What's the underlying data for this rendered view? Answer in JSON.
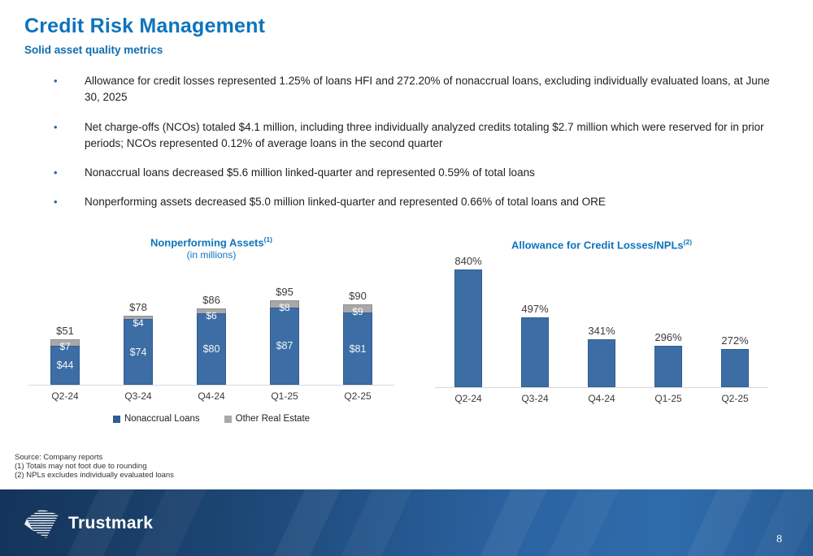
{
  "header": {
    "title": "Credit Risk Management",
    "subtitle": "Solid asset quality metrics"
  },
  "bullets": [
    "Allowance for credit losses represented 1.25% of loans HFI and 272.20% of nonaccrual loans, excluding individually evaluated loans, at June 30, 2025",
    "Net charge-offs (NCOs) totaled $4.1 million, including three individually analyzed credits totaling $2.7 million which were reserved for in prior periods; NCOs represented 0.12% of average loans in the second quarter",
    "Nonaccrual loans decreased $5.6 million linked-quarter and represented 0.59% of total loans",
    "Nonperforming assets decreased $5.0 million linked-quarter and represented 0.66% of total loans and ORE"
  ],
  "chart_data": [
    {
      "type": "bar",
      "stacked": true,
      "title": "Nonperforming Assets",
      "title_sup": "(1)",
      "subtitle": "(in millions)",
      "categories": [
        "Q2-24",
        "Q3-24",
        "Q4-24",
        "Q1-25",
        "Q2-25"
      ],
      "series": [
        {
          "name": "Nonaccrual Loans",
          "color": "#3c6ea5",
          "values": [
            44,
            74,
            80,
            87,
            81
          ],
          "labels": [
            "$44",
            "$74",
            "$80",
            "$87",
            "$81"
          ]
        },
        {
          "name": "Other Real Estate",
          "color": "#a8a8a8",
          "values": [
            7,
            4,
            6,
            8,
            9
          ],
          "labels": [
            "$7",
            "$4",
            "$6",
            "$8",
            "$9"
          ]
        }
      ],
      "totals": [
        51,
        78,
        86,
        95,
        90
      ],
      "total_labels": [
        "$51",
        "$78",
        "$86",
        "$95",
        "$90"
      ],
      "legend_position": "bottom",
      "ylim": [
        0,
        100
      ]
    },
    {
      "type": "bar",
      "title": "Allowance for Credit Losses/NPLs",
      "title_sup": "(2)",
      "categories": [
        "Q2-24",
        "Q3-24",
        "Q4-24",
        "Q1-25",
        "Q2-25"
      ],
      "values": [
        840,
        497,
        341,
        296,
        272
      ],
      "value_labels": [
        "840%",
        "497%",
        "341%",
        "296%",
        "272%"
      ],
      "bar_color": "#3c6ea5",
      "ylim": [
        0,
        900
      ]
    }
  ],
  "footnotes": [
    "Source: Company reports",
    "(1) Totals may not foot due to rounding",
    "(2) NPLs excludes individually evaluated loans"
  ],
  "footer": {
    "brand": "Trustmark",
    "page_number": "8"
  },
  "colors": {
    "accent_blue": "#0d73bd",
    "bar_blue": "#3c6ea5",
    "bar_gray": "#a8a8a8",
    "footer_navy": "#14345a",
    "footer_blue": "#2f6cab"
  }
}
